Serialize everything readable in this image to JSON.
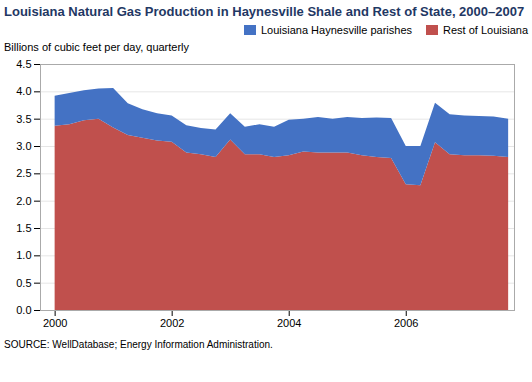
{
  "chart_data": {
    "type": "area",
    "stacked": true,
    "title": "Louisiana Natural Gas Production in Haynesville Shale and Rest of State, 2000–2007",
    "ylabel": "Billions of cubic feet per day, quarterly",
    "source": "SOURCE: WellDatabase; Energy Information Administration.",
    "x": [
      2000.0,
      2000.25,
      2000.5,
      2000.75,
      2001.0,
      2001.25,
      2001.5,
      2001.75,
      2002.0,
      2002.25,
      2002.5,
      2002.75,
      2003.0,
      2003.25,
      2003.5,
      2003.75,
      2004.0,
      2004.25,
      2004.5,
      2004.75,
      2005.0,
      2005.25,
      2005.5,
      2005.75,
      2006.0,
      2006.25,
      2006.5,
      2006.75,
      2007.0,
      2007.25,
      2007.5,
      2007.75
    ],
    "series": [
      {
        "name": "Rest of Louisiana",
        "color": "#C0504D",
        "values": [
          3.37,
          3.4,
          3.47,
          3.5,
          3.34,
          3.2,
          3.15,
          3.1,
          3.08,
          2.88,
          2.85,
          2.8,
          3.12,
          2.85,
          2.85,
          2.8,
          2.83,
          2.9,
          2.88,
          2.88,
          2.88,
          2.83,
          2.8,
          2.78,
          2.3,
          2.28,
          3.07,
          2.85,
          2.83,
          2.83,
          2.82,
          2.8
        ]
      },
      {
        "name": "Louisiana Haynesville parishes",
        "color": "#4472C4",
        "values": [
          0.55,
          0.57,
          0.55,
          0.55,
          0.72,
          0.58,
          0.52,
          0.5,
          0.48,
          0.5,
          0.48,
          0.5,
          0.48,
          0.5,
          0.55,
          0.55,
          0.65,
          0.6,
          0.65,
          0.62,
          0.65,
          0.68,
          0.72,
          0.73,
          0.7,
          0.72,
          0.72,
          0.73,
          0.73,
          0.72,
          0.72,
          0.7
        ]
      }
    ],
    "xlim": [
      1999.75,
      2007.85
    ],
    "xticks": [
      2000,
      2002,
      2004,
      2006
    ],
    "ylim": [
      0,
      4.5
    ],
    "yticks": [
      {
        "value": 0,
        "label": "0.0"
      },
      0.5,
      {
        "value": 1,
        "label": "1.0"
      },
      1.5,
      {
        "value": 2,
        "label": "2.0"
      },
      2.5,
      {
        "value": 3,
        "label": "3.0"
      },
      3.5,
      {
        "value": 4,
        "label": "4.0"
      },
      4.5
    ],
    "grid": true,
    "legend": "upper right"
  }
}
